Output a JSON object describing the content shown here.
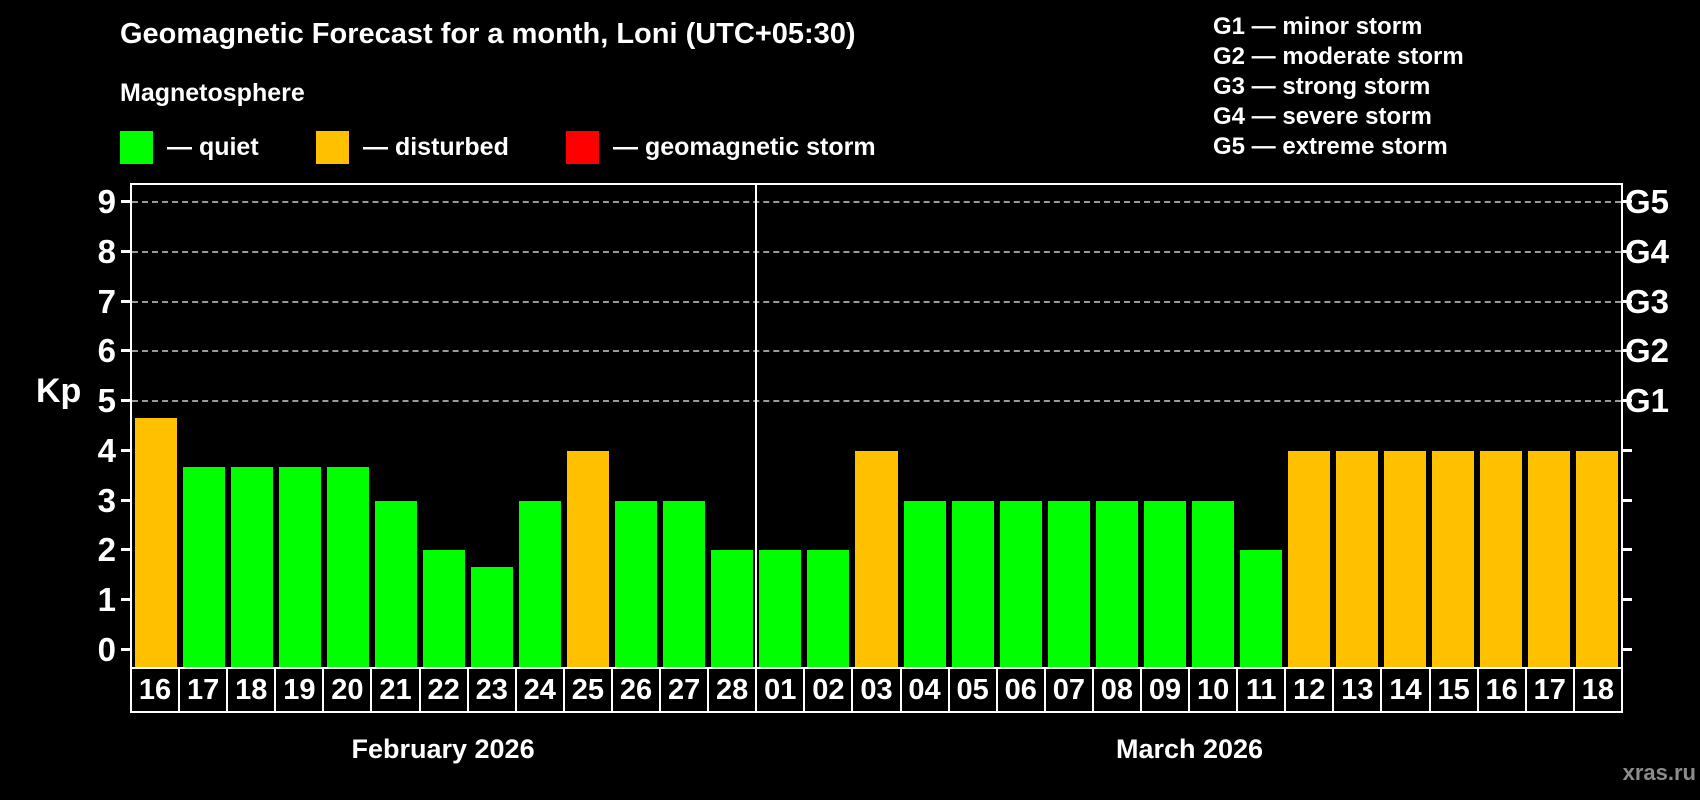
{
  "header": {
    "title": "Geomagnetic Forecast for a month, Loni (UTC+05:30)",
    "subtitle": "Magnetosphere"
  },
  "legend": [
    {
      "id": "quiet",
      "label": "— quiet"
    },
    {
      "id": "disturbed",
      "label": "— disturbed"
    },
    {
      "id": "storm",
      "label": "— geomagnetic storm"
    }
  ],
  "storm_scale": [
    "G1 — minor storm",
    "G2 — moderate storm",
    "G3 — strong storm",
    "G4 — severe storm",
    "G5 — extreme storm"
  ],
  "colors": {
    "quiet": "#00ff00",
    "disturbed": "#ffc000",
    "storm": "#ff0000",
    "background": "#000000",
    "text": "#ffffff",
    "gridline": "#9a9a9a",
    "watermark": "#8c8c8c"
  },
  "watermark": "xras.ru",
  "chart_data": {
    "type": "bar",
    "ylabel": "Kp",
    "ylim": [
      0,
      9.4
    ],
    "yticks": [
      0,
      1,
      2,
      3,
      4,
      5,
      6,
      7,
      8,
      9
    ],
    "right_axis": [
      {
        "kp": 5,
        "label": "G1"
      },
      {
        "kp": 6,
        "label": "G2"
      },
      {
        "kp": 7,
        "label": "G3"
      },
      {
        "kp": 8,
        "label": "G4"
      },
      {
        "kp": 9,
        "label": "G5"
      }
    ],
    "gridlines_at_kp": [
      5,
      6,
      7,
      8,
      9
    ],
    "legend_position": "top-left",
    "months": [
      {
        "label": "February 2026",
        "days": [
          "16",
          "17",
          "18",
          "19",
          "20",
          "21",
          "22",
          "23",
          "24",
          "25",
          "26",
          "27",
          "28"
        ],
        "values": [
          4.67,
          3.67,
          3.67,
          3.67,
          3.67,
          3,
          2,
          1.67,
          3,
          4,
          3,
          3,
          2
        ],
        "status": [
          "disturbed",
          "quiet",
          "quiet",
          "quiet",
          "quiet",
          "quiet",
          "quiet",
          "quiet",
          "quiet",
          "disturbed",
          "quiet",
          "quiet",
          "quiet"
        ]
      },
      {
        "label": "March 2026",
        "days": [
          "01",
          "02",
          "03",
          "04",
          "05",
          "06",
          "07",
          "08",
          "09",
          "10",
          "11",
          "12",
          "13",
          "14",
          "15",
          "16",
          "17",
          "18"
        ],
        "values": [
          2,
          2,
          4,
          3,
          3,
          3,
          3,
          3,
          3,
          3,
          2,
          4,
          4,
          4,
          4,
          4,
          4,
          4
        ],
        "status": [
          "quiet",
          "quiet",
          "disturbed",
          "quiet",
          "quiet",
          "quiet",
          "quiet",
          "quiet",
          "quiet",
          "quiet",
          "quiet",
          "disturbed",
          "disturbed",
          "disturbed",
          "disturbed",
          "disturbed",
          "disturbed",
          "disturbed"
        ]
      }
    ]
  }
}
